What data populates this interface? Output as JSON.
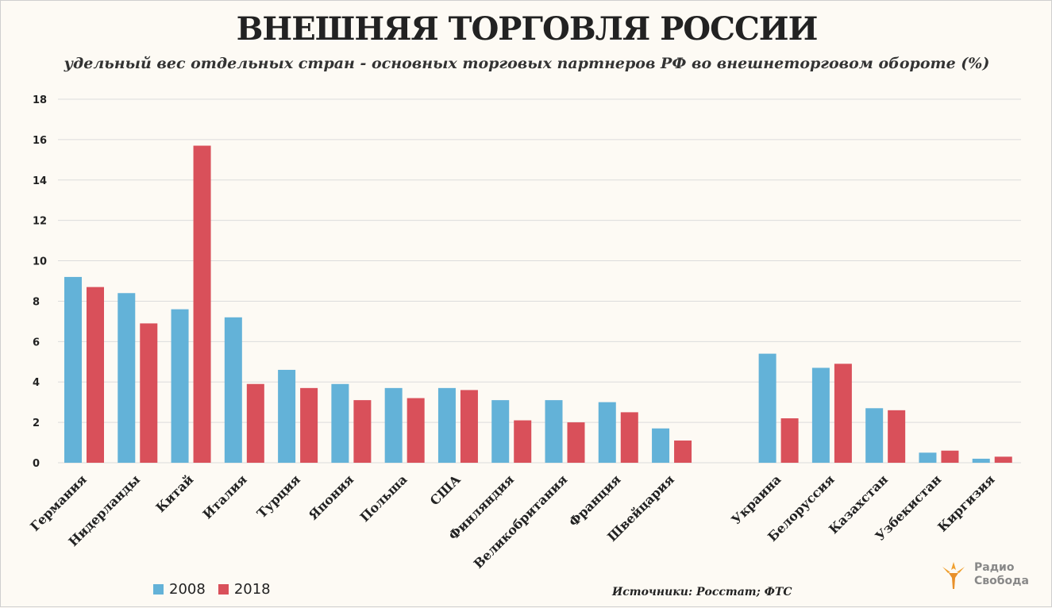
{
  "title": "ВНЕШНЯЯ ТОРГОВЛЯ РОССИИ",
  "subtitle": "удельный вес отдельных стран - основных торговых партнеров РФ во внешнеторговом обороте (%)",
  "source": "Источники: Росстат; ФТС",
  "logo": {
    "line1": "Радио",
    "line2": "Свобода"
  },
  "colors": {
    "series_2008": "#63b2d8",
    "series_2018": "#d9505a",
    "grid": "#dcdcdc",
    "background": "#fdfaf4"
  },
  "chart_data": {
    "type": "bar",
    "title": "ВНЕШНЯЯ ТОРГОВЛЯ РОССИИ",
    "ylabel": "",
    "xlabel": "",
    "ylim": [
      0,
      18
    ],
    "yticks": [
      0,
      2,
      4,
      6,
      8,
      10,
      12,
      14,
      16,
      18
    ],
    "grid": true,
    "legend_position": "bottom-left",
    "categories": [
      "Германия",
      "Нидерланды",
      "Китай",
      "Италия",
      "Турция",
      "Япония",
      "Польша",
      "США",
      "Финляндия",
      "Великобритания",
      "Франция",
      "Швейцария",
      "",
      "Украина",
      "Белоруссия",
      "Казахстан",
      "Узбекистан",
      "Киргизия"
    ],
    "series": [
      {
        "name": "2008",
        "values": [
          9.2,
          8.4,
          7.6,
          7.2,
          4.6,
          3.9,
          3.7,
          3.7,
          3.1,
          3.1,
          3.0,
          1.7,
          null,
          5.4,
          4.7,
          2.7,
          0.5,
          0.2
        ]
      },
      {
        "name": "2018",
        "values": [
          8.7,
          6.9,
          15.7,
          3.9,
          3.7,
          3.1,
          3.2,
          3.6,
          2.1,
          2.0,
          2.5,
          1.1,
          null,
          2.2,
          4.9,
          2.6,
          0.6,
          0.3
        ]
      }
    ]
  }
}
